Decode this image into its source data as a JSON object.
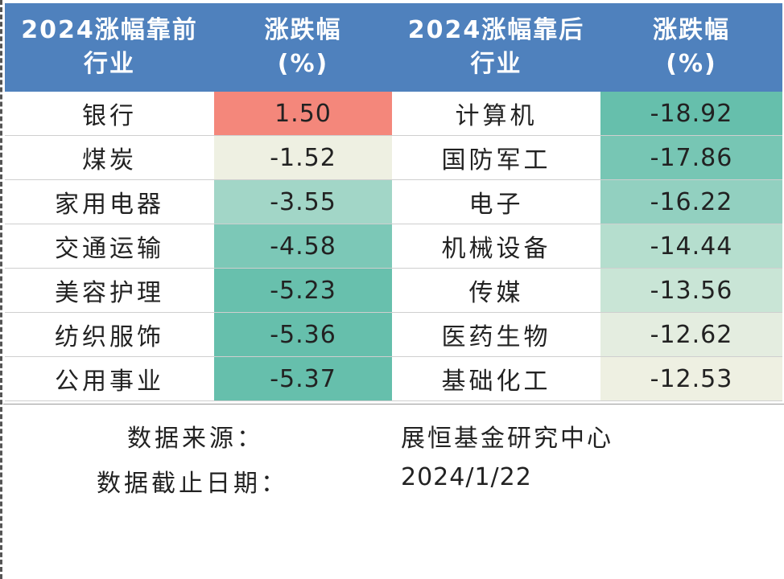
{
  "header": {
    "col1_line1": "2024涨幅靠前",
    "col1_line2": "行业",
    "col2_line1": "涨跌幅",
    "col2_line2": "(%)",
    "col3_line1": "2024涨幅靠后",
    "col3_line2": "行业",
    "col4_line1": "涨跌幅",
    "col4_line2": "(%)"
  },
  "rows": [
    {
      "top_name": "银行",
      "top_value": "1.50",
      "top_color": "#f4877b",
      "bottom_name": "计算机",
      "bottom_value": "-18.92",
      "bottom_color": "#66bfac"
    },
    {
      "top_name": "煤炭",
      "top_value": "-1.52",
      "top_color": "#eef0e2",
      "bottom_name": "国防军工",
      "bottom_value": "-17.86",
      "bottom_color": "#77c6b4"
    },
    {
      "top_name": "家用电器",
      "top_value": "-3.55",
      "top_color": "#a2d6c7",
      "bottom_name": "电子",
      "bottom_value": "-16.22",
      "bottom_color": "#92d0c0"
    },
    {
      "top_name": "交通运输",
      "top_value": "-4.58",
      "top_color": "#7cc8b7",
      "bottom_name": "机械设备",
      "bottom_value": "-14.44",
      "bottom_color": "#b5dece"
    },
    {
      "top_name": "美容护理",
      "top_value": "-5.23",
      "top_color": "#68c0ad",
      "bottom_name": "传媒",
      "bottom_value": "-13.56",
      "bottom_color": "#c9e5d6"
    },
    {
      "top_name": "纺织服饰",
      "top_value": "-5.36",
      "top_color": "#66bfac",
      "bottom_name": "医药生物",
      "bottom_value": "-12.62",
      "bottom_color": "#e4ede0"
    },
    {
      "top_name": "公用事业",
      "top_value": "-5.37",
      "top_color": "#66bfac",
      "bottom_name": "基础化工",
      "bottom_value": "-12.53",
      "bottom_color": "#eef0e2"
    }
  ],
  "footer": {
    "source_label": "数据来源：",
    "source_value": "展恒基金研究中心",
    "date_label": "数据截止日期：",
    "date_value": "2024/1/22"
  }
}
